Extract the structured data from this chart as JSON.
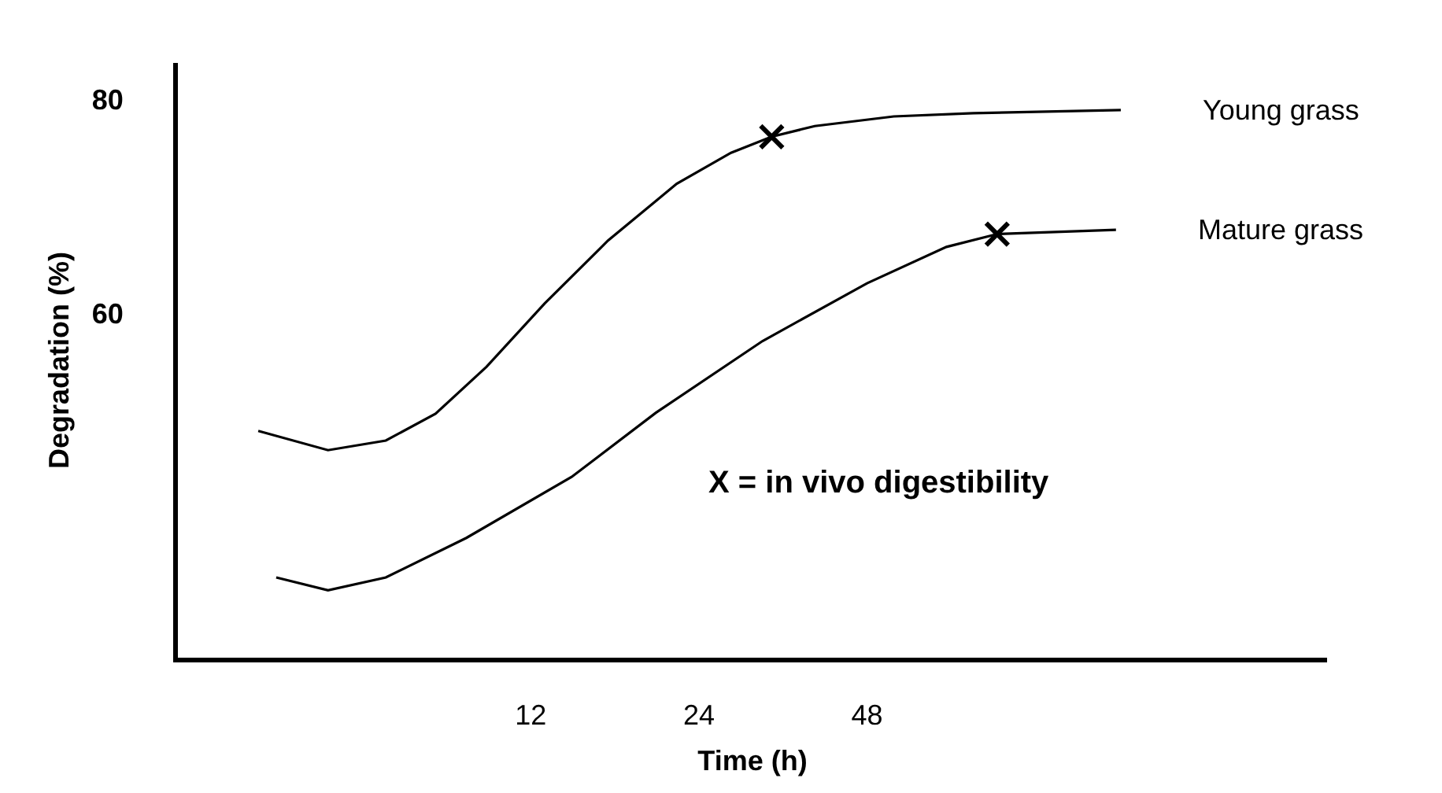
{
  "chart_data": {
    "type": "line",
    "xlabel": "Time (h)",
    "ylabel": "Degradation (%)",
    "log": "x",
    "xlim": [
      2.8,
      320
    ],
    "xticks": [
      12,
      24,
      48
    ],
    "ylim": [
      27.8,
      83.4
    ],
    "yticks": [
      60,
      80
    ],
    "grid": false,
    "legend": false,
    "line_style": "solid",
    "marker": "none",
    "annotations": [
      "X = in vivo digestibility"
    ],
    "series": [
      {
        "name": "Young grass",
        "color": "#000000",
        "x": [
          3.9,
          5.2,
          6.6,
          8.1,
          10.0,
          12.7,
          16.5,
          21.9,
          27.4,
          32.4,
          38.7,
          53.6,
          74.4,
          136.7
        ],
        "values": [
          49.0,
          47.2,
          48.1,
          50.6,
          55.0,
          60.9,
          66.8,
          72.1,
          75.0,
          76.5,
          77.5,
          78.4,
          78.7,
          79.0
        ]
      },
      {
        "name": "Mature grass",
        "color": "#000000",
        "x": [
          4.2,
          5.2,
          6.6,
          9.2,
          14.2,
          20.1,
          31.2,
          48,
          66.6,
          82.1,
          134
        ],
        "values": [
          35.3,
          34.1,
          35.3,
          39.0,
          44.7,
          50.7,
          57.4,
          62.8,
          66.2,
          67.4,
          67.8
        ]
      },
      {
        "type": "scatter",
        "marker": "cross",
        "color": "#000000",
        "x": [
          32.4,
          82.1
        ],
        "values": [
          76.5,
          67.4
        ]
      }
    ]
  }
}
